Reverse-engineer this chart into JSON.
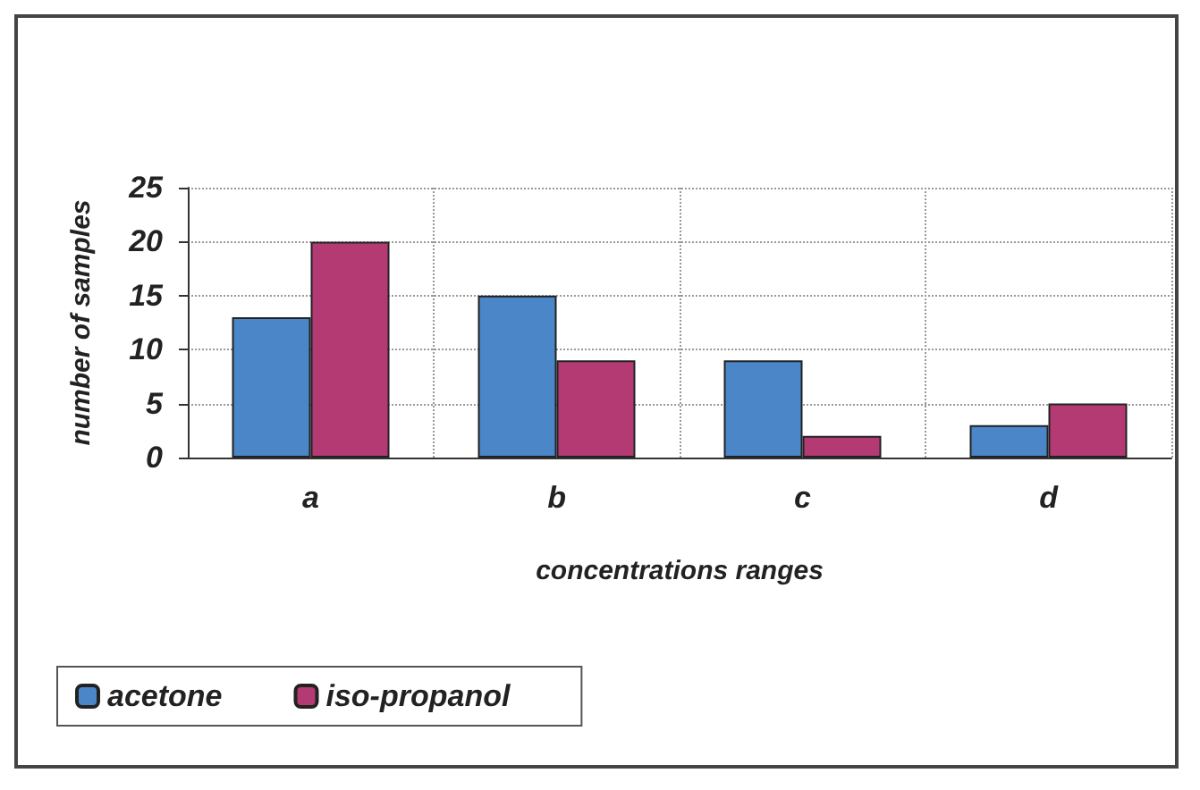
{
  "chart_data": {
    "type": "bar",
    "xlabel": "concentrations ranges",
    "ylabel": "number of samples",
    "categories": [
      "a",
      "b",
      "c",
      "d"
    ],
    "series": [
      {
        "name": "acetone",
        "color": "#4a86c8",
        "values": [
          13,
          15,
          9,
          3
        ]
      },
      {
        "name": "iso-propanol",
        "color": "#b43a74",
        "values": [
          20,
          9,
          2,
          5
        ]
      }
    ],
    "ylim": [
      0,
      25
    ],
    "yticks": [
      0,
      5,
      10,
      15,
      20,
      25
    ],
    "grid": true,
    "legend": "bottom left"
  }
}
